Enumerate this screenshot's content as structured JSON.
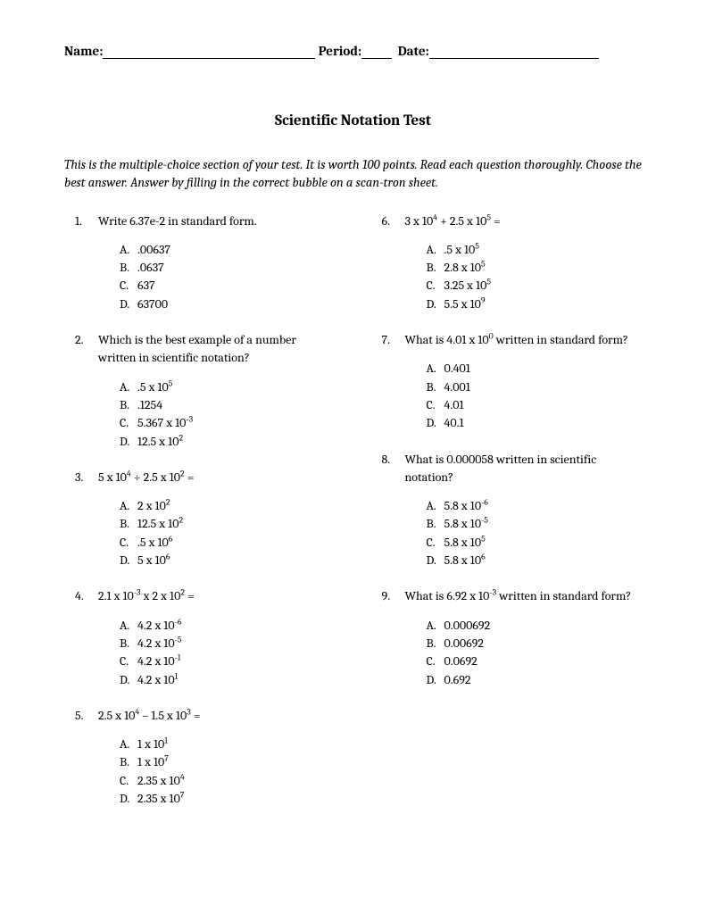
{
  "header": {
    "name_label": "Name:",
    "period_label": "Period:",
    "date_label": "Date:"
  },
  "title": "Scientific Notation Test",
  "instructions": "This is the multiple-choice section of your test. It is worth 100 points. Read each question thoroughly. Choose the best answer. Answer by filling in the correct bubble on a scan-tron sheet.",
  "questions_left": [
    {
      "num": "1.",
      "text": "Write 6.37e-2 in standard form.",
      "choices": [
        {
          "l": "A.",
          "t": ".00637"
        },
        {
          "l": "B.",
          "t": ".0637"
        },
        {
          "l": "C.",
          "t": "637"
        },
        {
          "l": "D.",
          "t": "63700"
        }
      ]
    },
    {
      "num": "2.",
      "text": "Which is the best example of a number written in scientific notation?",
      "choices": [
        {
          "l": "A.",
          "t": ".5 x 10",
          "sup": "5"
        },
        {
          "l": "B.",
          "t": ".1254"
        },
        {
          "l": "C.",
          "t": "5.367 x 10",
          "sup": "-3"
        },
        {
          "l": "D.",
          "t": "12.5 x 10",
          "sup": "2"
        }
      ]
    },
    {
      "num": "3.",
      "text_pre": "5 x 10",
      "sup1": "4",
      "text_mid": " ÷ 2.5 x 10",
      "sup2": "2",
      "text_post": " =",
      "choices": [
        {
          "l": "A.",
          "t": "2 x 10",
          "sup": "2"
        },
        {
          "l": "B.",
          "t": "12.5 x 10",
          "sup": "2"
        },
        {
          "l": "C.",
          "t": ".5 x 10",
          "sup": "6"
        },
        {
          "l": "D.",
          "t": "5 x 10",
          "sup": "6"
        }
      ]
    },
    {
      "num": "4.",
      "text_pre": "2.1 x 10",
      "sup1": "-3",
      "text_mid": " x 2 x 10",
      "sup2": "2",
      "text_post": " =",
      "choices": [
        {
          "l": "A.",
          "t": "4.2 x 10",
          "sup": "-6"
        },
        {
          "l": "B.",
          "t": "4.2 x 10",
          "sup": "-5"
        },
        {
          "l": "C.",
          "t": "4.2 x 10",
          "sup": "-1"
        },
        {
          "l": "D.",
          "t": "4.2 x 10",
          "sup": "1"
        }
      ]
    },
    {
      "num": "5.",
      "text_pre": "2.5 x 10",
      "sup1": "4",
      "text_mid": " – 1.5 x 10",
      "sup2": "3",
      "text_post": " =",
      "choices": [
        {
          "l": "A.",
          "t": "1 x 10",
          "sup": "1"
        },
        {
          "l": "B.",
          "t": "1 x 10",
          "sup": "7"
        },
        {
          "l": "C.",
          "t": "2.35 x 10",
          "sup": "4"
        },
        {
          "l": "D.",
          "t": "2.35 x 10",
          "sup": "7"
        }
      ]
    }
  ],
  "questions_right": [
    {
      "num": "6.",
      "text_pre": "3 x 10",
      "sup1": "4",
      "text_mid": "  +  2.5 x 10",
      "sup2": "5",
      "text_post": " =",
      "choices": [
        {
          "l": "A.",
          "t": ".5 x 10",
          "sup": "5"
        },
        {
          "l": "B.",
          "t": "2.8 x 10",
          "sup": "5"
        },
        {
          "l": "C.",
          "t": "3.25 x 10",
          "sup": "5"
        },
        {
          "l": "D.",
          "t": "5.5 x 10",
          "sup": "9"
        }
      ]
    },
    {
      "num": "7.",
      "text_pre": "What is 4.01 x 10",
      "sup1": "0",
      "text_post": " written in standard form?",
      "choices": [
        {
          "l": "A.",
          "t": "0.401"
        },
        {
          "l": "B.",
          "t": "4.001"
        },
        {
          "l": "C.",
          "t": "4.01"
        },
        {
          "l": "D.",
          "t": "40.1"
        }
      ]
    },
    {
      "num": "8.",
      "text": "What is 0.000058 written in scientific notation?",
      "choices": [
        {
          "l": "A.",
          "t": "5.8 x 10",
          "sup": "-6"
        },
        {
          "l": "B.",
          "t": "5.8 x 10",
          "sup": "-5"
        },
        {
          "l": "C.",
          "t": "5.8 x 10",
          "sup": "5"
        },
        {
          "l": "D.",
          "t": "5.8 x 10",
          "sup": "6"
        }
      ]
    },
    {
      "num": "9.",
      "text_pre": "What is 6.92 x 10",
      "sup1": "-3",
      "text_post": " written in standard form?",
      "choices": [
        {
          "l": "A.",
          "t": "0.000692"
        },
        {
          "l": "B.",
          "t": "0.00692"
        },
        {
          "l": "C.",
          "t": "0.0692"
        },
        {
          "l": "D.",
          "t": "0.692"
        }
      ]
    }
  ]
}
